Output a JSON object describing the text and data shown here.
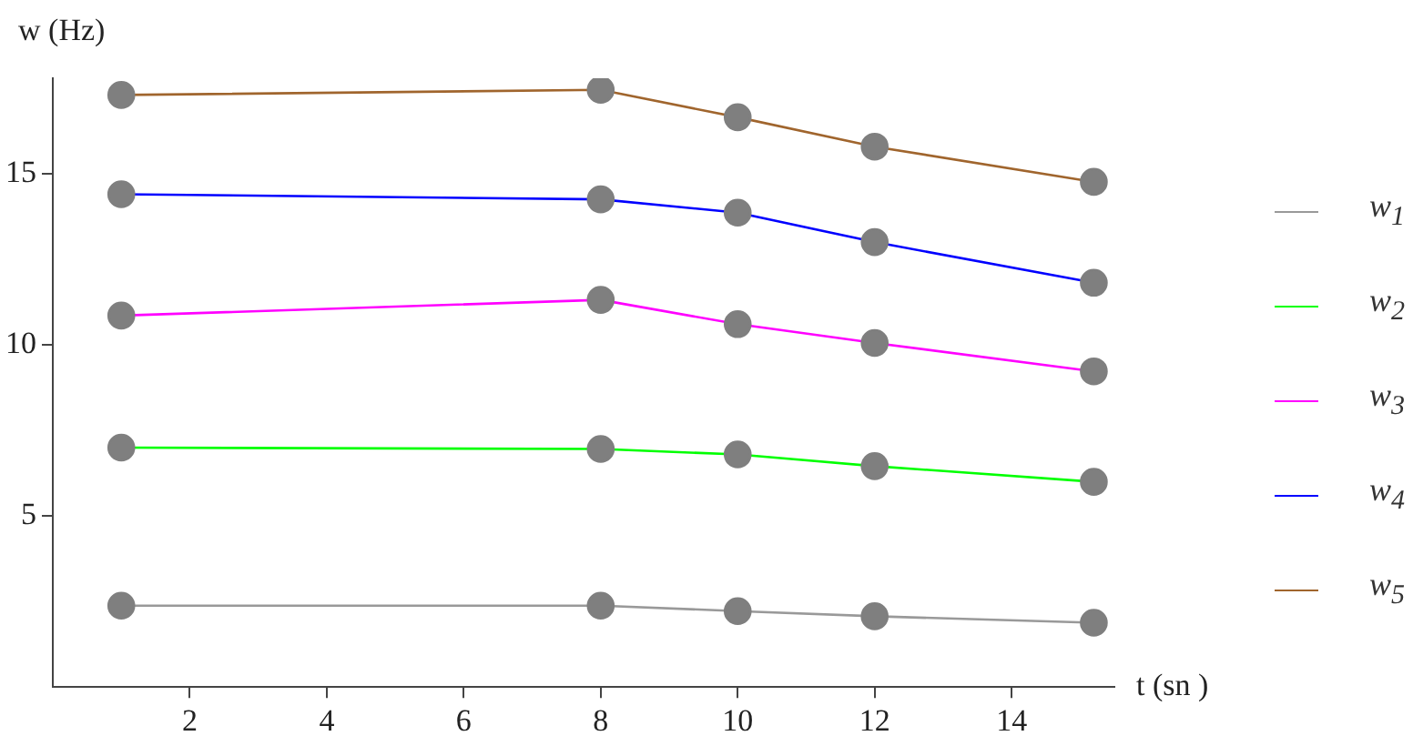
{
  "chart_data": {
    "type": "line",
    "xlabel": "t (sn )",
    "ylabel": "w (Hz)",
    "x": [
      1,
      8,
      10,
      12,
      15.2
    ],
    "series": [
      {
        "name": "w$_{1}$",
        "color": "#999999",
        "values": [
          2.38,
          2.38,
          2.22,
          2.07,
          1.88
        ]
      },
      {
        "name": "w$_{2}$",
        "color": "#00ff00",
        "values": [
          7.0,
          6.96,
          6.8,
          6.46,
          6.0
        ]
      },
      {
        "name": "w$_{3}$",
        "color": "#ff00ff",
        "values": [
          10.86,
          11.32,
          10.61,
          10.06,
          9.23
        ]
      },
      {
        "name": "w$_{4}$",
        "color": "#0000ff",
        "values": [
          14.41,
          14.26,
          13.87,
          13.01,
          11.82
        ]
      },
      {
        "name": "w$_{5}$",
        "color": "#a0652d",
        "values": [
          17.31,
          17.46,
          16.66,
          15.8,
          14.77
        ]
      }
    ],
    "xlim": [
      0,
      15.5
    ],
    "xticks": [
      2,
      4,
      6,
      8,
      10,
      12,
      14
    ],
    "ylim": [
      0,
      17.8
    ],
    "yticks": [
      5,
      10,
      15
    ],
    "grid": false,
    "legend": "right",
    "marker": "circle",
    "line_style": "solid"
  }
}
